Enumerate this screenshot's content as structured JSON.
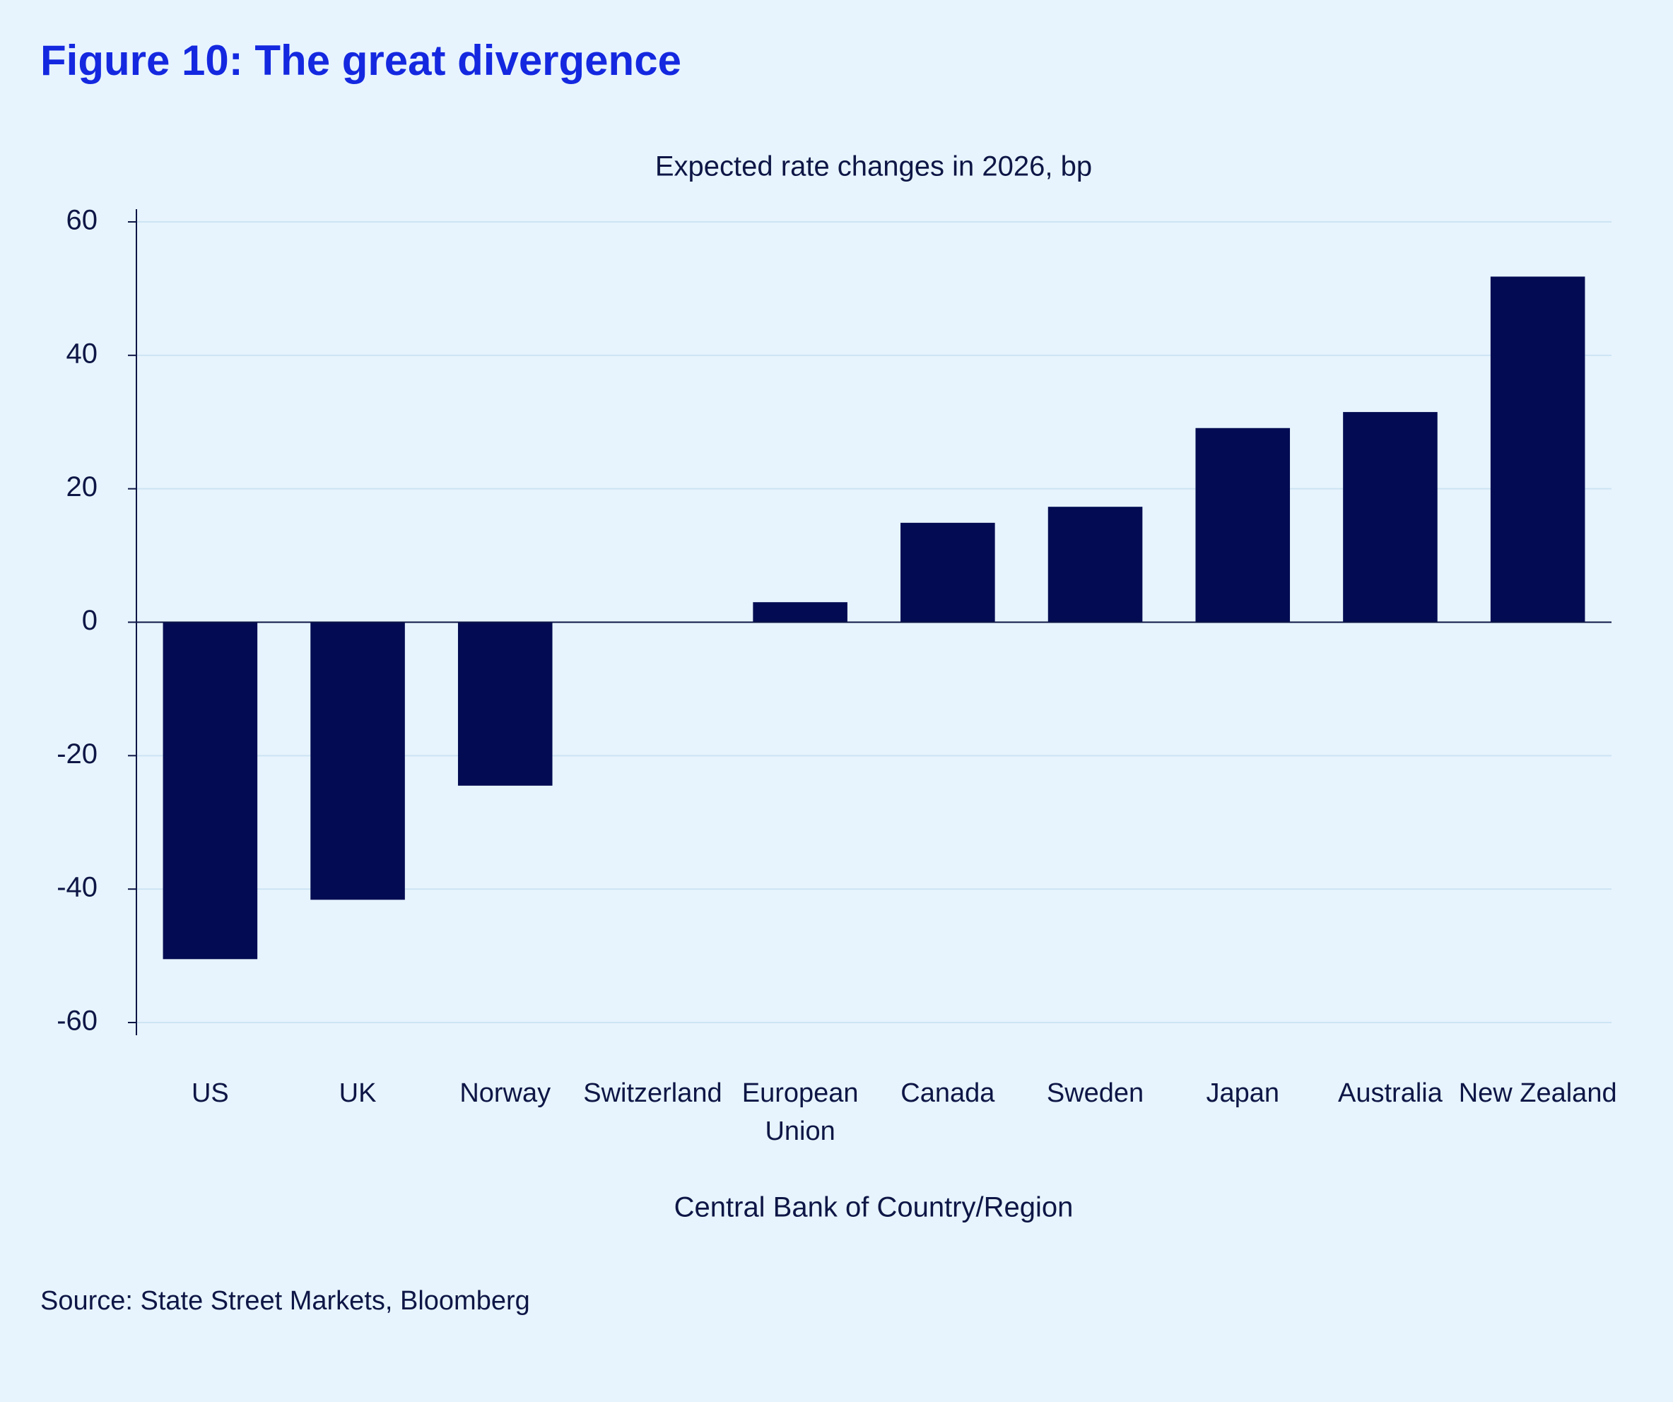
{
  "chart_data": {
    "type": "bar",
    "title": "Figure 10: The great divergence",
    "subtitle": "Expected rate changes in 2026, bp",
    "x_label": "Central Bank of Country/Region",
    "source": "Source: State Street Markets, Bloomberg",
    "categories": [
      "US",
      "UK",
      "Norway",
      "Switzerland",
      "European Union",
      "Canada",
      "Sweden",
      "Japan",
      "Australia",
      "New Zealand"
    ],
    "values": [
      -50.5,
      -41.6,
      -24.5,
      0,
      3,
      14.9,
      17.3,
      29.1,
      31.5,
      51.8
    ],
    "color": "#030c52",
    "ylim": [
      -60,
      60
    ],
    "yticks": [
      -60,
      -40,
      -20,
      0,
      20,
      40,
      60
    ],
    "grid": true
  }
}
